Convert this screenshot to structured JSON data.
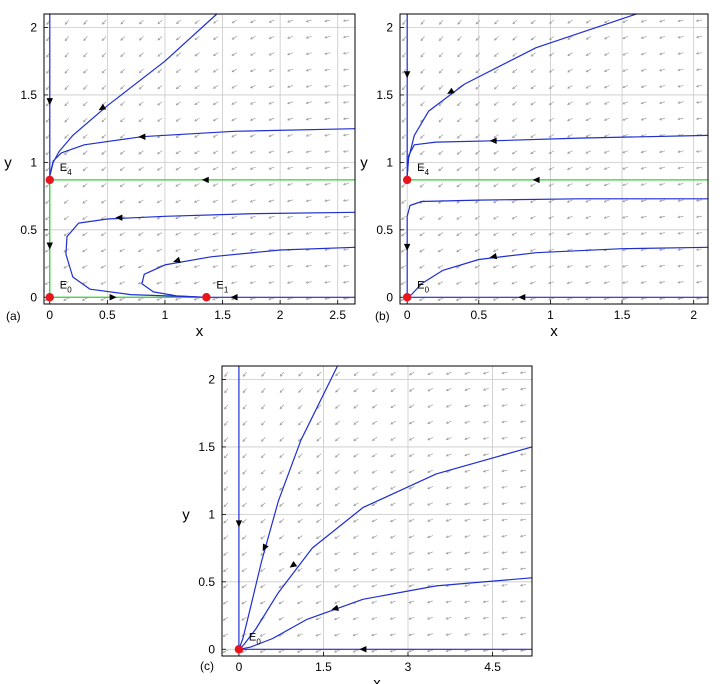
{
  "chart_data": [
    {
      "type": "line",
      "panel_label": "(a)",
      "xlabel": "x",
      "ylabel": "y",
      "xlim": [
        -0.05,
        2.65
      ],
      "ylim": [
        -0.05,
        2.1
      ],
      "xticks": [
        0,
        0.5,
        1,
        1.5,
        2,
        2.5
      ],
      "xtick_labels": [
        "0",
        "0.5",
        "1",
        "1.5",
        "2",
        "2.5"
      ],
      "yticks": [
        0,
        0.5,
        1,
        1.5,
        2
      ],
      "ytick_labels": [
        "0",
        "0.5",
        "1",
        "1.5",
        "2"
      ],
      "grid": true,
      "equilibria": [
        {
          "label": "E",
          "sub": "0",
          "x": 0,
          "y": 0
        },
        {
          "label": "E",
          "sub": "1",
          "x": 1.36,
          "y": 0
        },
        {
          "label": "E",
          "sub": "4",
          "x": 0,
          "y": 0.87
        }
      ],
      "green_lines": [
        [
          [
            0,
            0.87
          ],
          [
            2.65,
            0.87
          ]
        ],
        [
          [
            0,
            0
          ],
          [
            1.36,
            0
          ]
        ],
        [
          [
            0,
            0
          ],
          [
            0,
            0.87
          ]
        ]
      ],
      "trajectories": [
        [
          [
            1.45,
            2.1
          ],
          [
            1.0,
            1.75
          ],
          [
            0.5,
            1.42
          ],
          [
            0.2,
            1.2
          ],
          [
            0.08,
            1.08
          ],
          [
            0.03,
            1.0
          ],
          [
            0,
            0.9
          ]
        ],
        [
          [
            2.65,
            1.25
          ],
          [
            1.6,
            1.23
          ],
          [
            0.8,
            1.19
          ],
          [
            0.3,
            1.13
          ],
          [
            0.1,
            1.07
          ],
          [
            0.03,
            1.01
          ],
          [
            0,
            0.9
          ]
        ],
        [
          [
            2.65,
            0.63
          ],
          [
            1.8,
            0.62
          ],
          [
            1.0,
            0.6
          ],
          [
            0.5,
            0.58
          ],
          [
            0.25,
            0.55
          ],
          [
            0.15,
            0.45
          ],
          [
            0.14,
            0.32
          ],
          [
            0.2,
            0.15
          ],
          [
            0.35,
            0.06
          ],
          [
            0.7,
            0.02
          ],
          [
            1.2,
            0.005
          ],
          [
            1.36,
            0
          ]
        ],
        [
          [
            2.65,
            0.37
          ],
          [
            2.0,
            0.35
          ],
          [
            1.4,
            0.3
          ],
          [
            1.0,
            0.24
          ],
          [
            0.82,
            0.17
          ],
          [
            0.8,
            0.1
          ],
          [
            0.9,
            0.04
          ],
          [
            1.1,
            0.01
          ],
          [
            1.36,
            0
          ]
        ],
        [
          [
            2.65,
            0.0
          ],
          [
            1.36,
            0.0
          ]
        ],
        [
          [
            0,
            2.1
          ],
          [
            0,
            0.87
          ]
        ]
      ],
      "trajectory_arrows": [
        {
          "x": 0.45,
          "y": 1.4,
          "dx": -1,
          "dy": -0.6
        },
        {
          "x": 0.8,
          "y": 1.19,
          "dx": -1,
          "dy": 0
        },
        {
          "x": 0.6,
          "y": 0.59,
          "dx": -1,
          "dy": 0
        },
        {
          "x": 1.1,
          "y": 0.27,
          "dx": -1,
          "dy": -0.3
        },
        {
          "x": 1.6,
          "y": 0.0,
          "dx": -1,
          "dy": 0
        },
        {
          "x": 0.0,
          "y": 1.45,
          "dx": 0,
          "dy": -1
        },
        {
          "x": 0.0,
          "y": 0.38,
          "dx": 0,
          "dy": -1
        },
        {
          "x": 0.55,
          "y": 0.0,
          "dx": 1,
          "dy": 0
        },
        {
          "x": 1.35,
          "y": 0.87,
          "dx": -1,
          "dy": 0
        }
      ]
    },
    {
      "type": "line",
      "panel_label": "(b)",
      "xlabel": "x",
      "ylabel": "y",
      "xlim": [
        -0.05,
        2.1
      ],
      "ylim": [
        -0.05,
        2.1
      ],
      "xticks": [
        0,
        0.5,
        1,
        1.5,
        2
      ],
      "xtick_labels": [
        "0",
        "0.5",
        "1",
        "1.5",
        "2"
      ],
      "yticks": [
        0,
        0.5,
        1,
        1.5,
        2
      ],
      "ytick_labels": [
        "0",
        "0.5",
        "1",
        "1.5",
        "2"
      ],
      "grid": true,
      "equilibria": [
        {
          "label": "E",
          "sub": "0",
          "x": 0,
          "y": 0
        },
        {
          "label": "E",
          "sub": "4",
          "x": 0,
          "y": 0.87
        }
      ],
      "green_lines": [
        [
          [
            0,
            0.87
          ],
          [
            2.1,
            0.87
          ]
        ]
      ],
      "trajectories": [
        [
          [
            1.6,
            2.1
          ],
          [
            0.9,
            1.85
          ],
          [
            0.4,
            1.58
          ],
          [
            0.15,
            1.38
          ],
          [
            0.05,
            1.2
          ],
          [
            0.01,
            1.03
          ],
          [
            0,
            0.9
          ]
        ],
        [
          [
            2.1,
            1.2
          ],
          [
            1.2,
            1.18
          ],
          [
            0.6,
            1.16
          ],
          [
            0.2,
            1.15
          ],
          [
            0.05,
            1.13
          ],
          [
            0.01,
            1.05
          ],
          [
            0,
            0.9
          ]
        ],
        [
          [
            2.1,
            0.73
          ],
          [
            1.2,
            0.73
          ],
          [
            0.5,
            0.72
          ],
          [
            0.1,
            0.71
          ],
          [
            0.02,
            0.68
          ],
          [
            0.0,
            0.6
          ],
          [
            0,
            0.1
          ],
          [
            0,
            0
          ]
        ],
        [
          [
            2.1,
            0.37
          ],
          [
            1.5,
            0.36
          ],
          [
            0.9,
            0.33
          ],
          [
            0.5,
            0.28
          ],
          [
            0.25,
            0.2
          ],
          [
            0.1,
            0.1
          ],
          [
            0.03,
            0.02
          ],
          [
            0,
            0
          ]
        ],
        [
          [
            2.1,
            0.0
          ],
          [
            0,
            0.0
          ]
        ],
        [
          [
            0,
            2.1
          ],
          [
            0,
            0.87
          ]
        ]
      ],
      "trajectory_arrows": [
        {
          "x": 0.3,
          "y": 1.52,
          "dx": -1,
          "dy": -0.6
        },
        {
          "x": 0.6,
          "y": 1.16,
          "dx": -1,
          "dy": 0
        },
        {
          "x": 0.6,
          "y": 0.3,
          "dx": -1,
          "dy": -0.2
        },
        {
          "x": 0.8,
          "y": 0.0,
          "dx": -1,
          "dy": 0
        },
        {
          "x": 0.0,
          "y": 1.65,
          "dx": 0,
          "dy": -1
        },
        {
          "x": 0.0,
          "y": 0.37,
          "dx": 0,
          "dy": -1
        },
        {
          "x": 0.9,
          "y": 0.87,
          "dx": -1,
          "dy": 0
        }
      ]
    },
    {
      "type": "line",
      "panel_label": "(c)",
      "xlabel": "x",
      "ylabel": "y",
      "xlim": [
        -0.3,
        5.2
      ],
      "ylim": [
        -0.05,
        2.1
      ],
      "xticks": [
        0,
        1.5,
        3,
        4.5
      ],
      "xtick_labels": [
        "0",
        "1.5",
        "3",
        "4.5"
      ],
      "yticks": [
        0,
        0.5,
        1,
        1.5,
        2
      ],
      "ytick_labels": [
        "0",
        "0.5",
        "1",
        "1.5",
        "2"
      ],
      "grid": true,
      "equilibria": [
        {
          "label": "E",
          "sub": "0",
          "x": 0,
          "y": 0
        }
      ],
      "green_lines": [],
      "trajectories": [
        [
          [
            1.75,
            2.1
          ],
          [
            1.1,
            1.55
          ],
          [
            0.7,
            1.1
          ],
          [
            0.4,
            0.65
          ],
          [
            0.2,
            0.3
          ],
          [
            0.07,
            0.08
          ],
          [
            0,
            0
          ]
        ],
        [
          [
            5.2,
            1.5
          ],
          [
            3.5,
            1.3
          ],
          [
            2.2,
            1.05
          ],
          [
            1.3,
            0.75
          ],
          [
            0.7,
            0.42
          ],
          [
            0.3,
            0.15
          ],
          [
            0.08,
            0.03
          ],
          [
            0,
            0
          ]
        ],
        [
          [
            5.2,
            0.53
          ],
          [
            3.5,
            0.47
          ],
          [
            2.2,
            0.37
          ],
          [
            1.2,
            0.22
          ],
          [
            0.6,
            0.08
          ],
          [
            0.2,
            0.015
          ],
          [
            0,
            0
          ]
        ],
        [
          [
            5.2,
            0.0
          ],
          [
            0,
            0.0
          ]
        ],
        [
          [
            0,
            2.1
          ],
          [
            0,
            0
          ]
        ]
      ],
      "trajectory_arrows": [
        {
          "x": 0.45,
          "y": 0.75,
          "dx": -0.5,
          "dy": -1
        },
        {
          "x": 0.95,
          "y": 0.62,
          "dx": -1,
          "dy": -0.7
        },
        {
          "x": 1.7,
          "y": 0.3,
          "dx": -1,
          "dy": -0.3
        },
        {
          "x": 2.2,
          "y": 0.0,
          "dx": -1,
          "dy": 0
        },
        {
          "x": 0.0,
          "y": 0.93,
          "dx": 0,
          "dy": -1
        }
      ]
    }
  ],
  "colors": {
    "trajectory": "#1f2fd0",
    "nullcline": "#33d033",
    "equilibrium": "#e8141e",
    "vector_field": "#a0a0a0",
    "grid": "#c8c8c8"
  }
}
